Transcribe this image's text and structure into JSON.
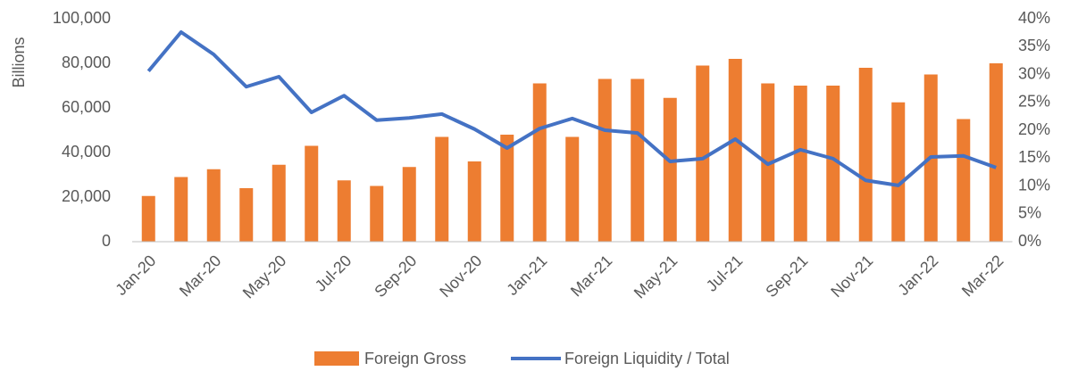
{
  "chart_data": {
    "type": "bar_line",
    "ylabel": "Billions",
    "categories": [
      "Jan-20",
      null,
      "Mar-20",
      null,
      "May-20",
      null,
      "Jul-20",
      null,
      "Sep-20",
      null,
      "Nov-20",
      null,
      "Jan-21",
      null,
      "Mar-21",
      null,
      "May-21",
      null,
      "Jul-21",
      null,
      "Sep-21",
      null,
      "Nov-21",
      null,
      "Jan-22",
      null,
      "Mar-22"
    ],
    "series": [
      {
        "name": "Foreign Gross",
        "type": "bar",
        "color": "#ed7d31",
        "values": [
          20500,
          29000,
          32500,
          24000,
          34500,
          43000,
          27500,
          25000,
          33500,
          47000,
          36000,
          48000,
          71000,
          47000,
          73000,
          73000,
          64500,
          79000,
          82000,
          71000,
          70000,
          70000,
          78000,
          62500,
          75000,
          55000,
          80000
        ]
      },
      {
        "name": "Foreign Liquidity / Total",
        "type": "line",
        "axis": "y2",
        "color": "#4472c4",
        "values": [
          30.6,
          37.6,
          33.6,
          27.8,
          29.6,
          23.2,
          26.2,
          21.8,
          22.2,
          22.9,
          20.2,
          16.8,
          20.3,
          22.1,
          20.0,
          19.5,
          14.4,
          14.9,
          18.4,
          13.9,
          16.5,
          14.9,
          11.0,
          10.1,
          15.2,
          15.4,
          13.3
        ]
      }
    ],
    "ylim": [
      0,
      100000
    ],
    "yticks": [
      0,
      {
        "value": 20000,
        "label": "20,000"
      },
      {
        "value": 40000,
        "label": "40,000"
      },
      {
        "value": 60000,
        "label": "60,000"
      },
      {
        "value": 80000,
        "label": "80,000"
      },
      {
        "value": 100000,
        "label": "100,000"
      }
    ],
    "y2lim": [
      0,
      40
    ],
    "y2ticks": [
      {
        "value": 0,
        "label": "0%"
      },
      {
        "value": 5,
        "label": "5%"
      },
      {
        "value": 10,
        "label": "10%"
      },
      {
        "value": 15,
        "label": "15%"
      },
      {
        "value": 20,
        "label": "20%"
      },
      {
        "value": 25,
        "label": "25%"
      },
      {
        "value": 30,
        "label": "30%"
      },
      {
        "value": 35,
        "label": "35%"
      },
      {
        "value": 40,
        "label": "40%"
      }
    ],
    "grid": false,
    "legend": "bottom"
  }
}
